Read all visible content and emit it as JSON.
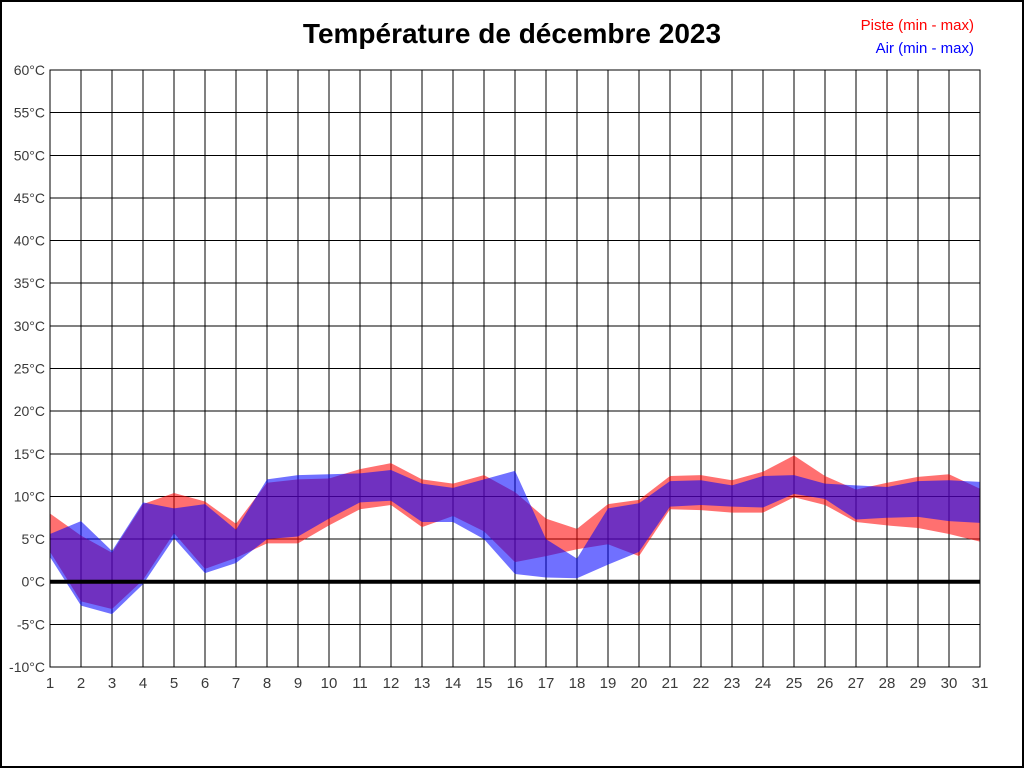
{
  "title": "Température de décembre 2023",
  "legend": {
    "piste_label": "Piste (min - max)",
    "air_label": "Air (min - max)"
  },
  "colors": {
    "piste_band": "#ff0000",
    "air_band": "#0000ff",
    "band_opacity": 0.56,
    "grid": "#000000",
    "zero_line": "#000000",
    "tick_label": "#3a3a3a",
    "legend_piste": "#ff0000",
    "legend_air": "#0000ff",
    "background": "#ffffff"
  },
  "axes": {
    "y_unit": "°C",
    "y_tick_values": [
      60,
      55,
      50,
      45,
      40,
      35,
      30,
      25,
      20,
      15,
      10,
      5,
      0,
      -5,
      -10
    ],
    "y_tick_labels": [
      "60°C",
      "55°C",
      "50°C",
      "45°C",
      "40°C",
      "35°C",
      "30°C",
      "25°C",
      "20°C",
      "15°C",
      "10°C",
      "5°C",
      "0°C",
      "-5°C",
      "-10°C"
    ],
    "x_tick_labels": [
      "1",
      "2",
      "3",
      "4",
      "5",
      "6",
      "7",
      "8",
      "9",
      "10",
      "11",
      "12",
      "13",
      "14",
      "15",
      "16",
      "17",
      "18",
      "19",
      "20",
      "21",
      "22",
      "23",
      "24",
      "25",
      "26",
      "27",
      "28",
      "29",
      "30",
      "31"
    ]
  },
  "chart_data": {
    "type": "area",
    "subtype": "min-max-bands",
    "title": "Température de décembre 2023",
    "x": [
      1,
      2,
      3,
      4,
      5,
      6,
      7,
      8,
      9,
      10,
      11,
      12,
      13,
      14,
      15,
      16,
      17,
      18,
      19,
      20,
      21,
      22,
      23,
      24,
      25,
      26,
      27,
      28,
      29,
      30,
      31
    ],
    "xlabel": "",
    "ylabel": "",
    "ylim": [
      -10,
      60
    ],
    "y_step": 5,
    "grid": true,
    "legend_position": "top-right",
    "zero_line_value": 0,
    "series": [
      {
        "name": "Piste (min - max)",
        "color": "#ff0000",
        "min": [
          3.5,
          -2.3,
          -3.2,
          0.2,
          5.7,
          1.5,
          2.8,
          4.5,
          4.5,
          6.6,
          8.5,
          9.0,
          6.4,
          7.7,
          5.9,
          2.3,
          3.0,
          3.8,
          4.4,
          3.0,
          8.5,
          8.4,
          8.1,
          8.1,
          9.9,
          9.0,
          7.0,
          6.6,
          6.3,
          5.6,
          4.7
        ],
        "max": [
          8.0,
          5.4,
          3.4,
          9.1,
          10.4,
          9.4,
          6.8,
          11.6,
          12.0,
          12.1,
          13.2,
          13.9,
          12.0,
          11.5,
          12.5,
          10.5,
          7.4,
          6.2,
          9.1,
          9.6,
          12.4,
          12.5,
          11.9,
          12.9,
          14.8,
          12.4,
          10.8,
          11.6,
          12.3,
          12.6,
          10.9
        ]
      },
      {
        "name": "Air (min - max)",
        "color": "#0000ff",
        "min": [
          2.9,
          -2.8,
          -3.8,
          -0.3,
          5.1,
          1.0,
          2.2,
          5.0,
          5.3,
          7.4,
          9.3,
          9.5,
          7.0,
          7.0,
          5.0,
          0.9,
          0.5,
          0.4,
          2.0,
          3.5,
          8.8,
          9.0,
          8.8,
          8.7,
          10.3,
          9.7,
          7.3,
          7.5,
          7.6,
          7.1,
          6.9
        ],
        "max": [
          5.6,
          7.1,
          3.6,
          9.3,
          8.6,
          9.1,
          6.1,
          12.0,
          12.5,
          12.6,
          12.7,
          13.1,
          11.5,
          11.0,
          12.0,
          13.0,
          5.0,
          2.7,
          8.6,
          9.2,
          11.8,
          11.9,
          11.3,
          12.4,
          12.5,
          11.5,
          11.3,
          11.1,
          11.8,
          11.9,
          11.7
        ]
      }
    ]
  }
}
